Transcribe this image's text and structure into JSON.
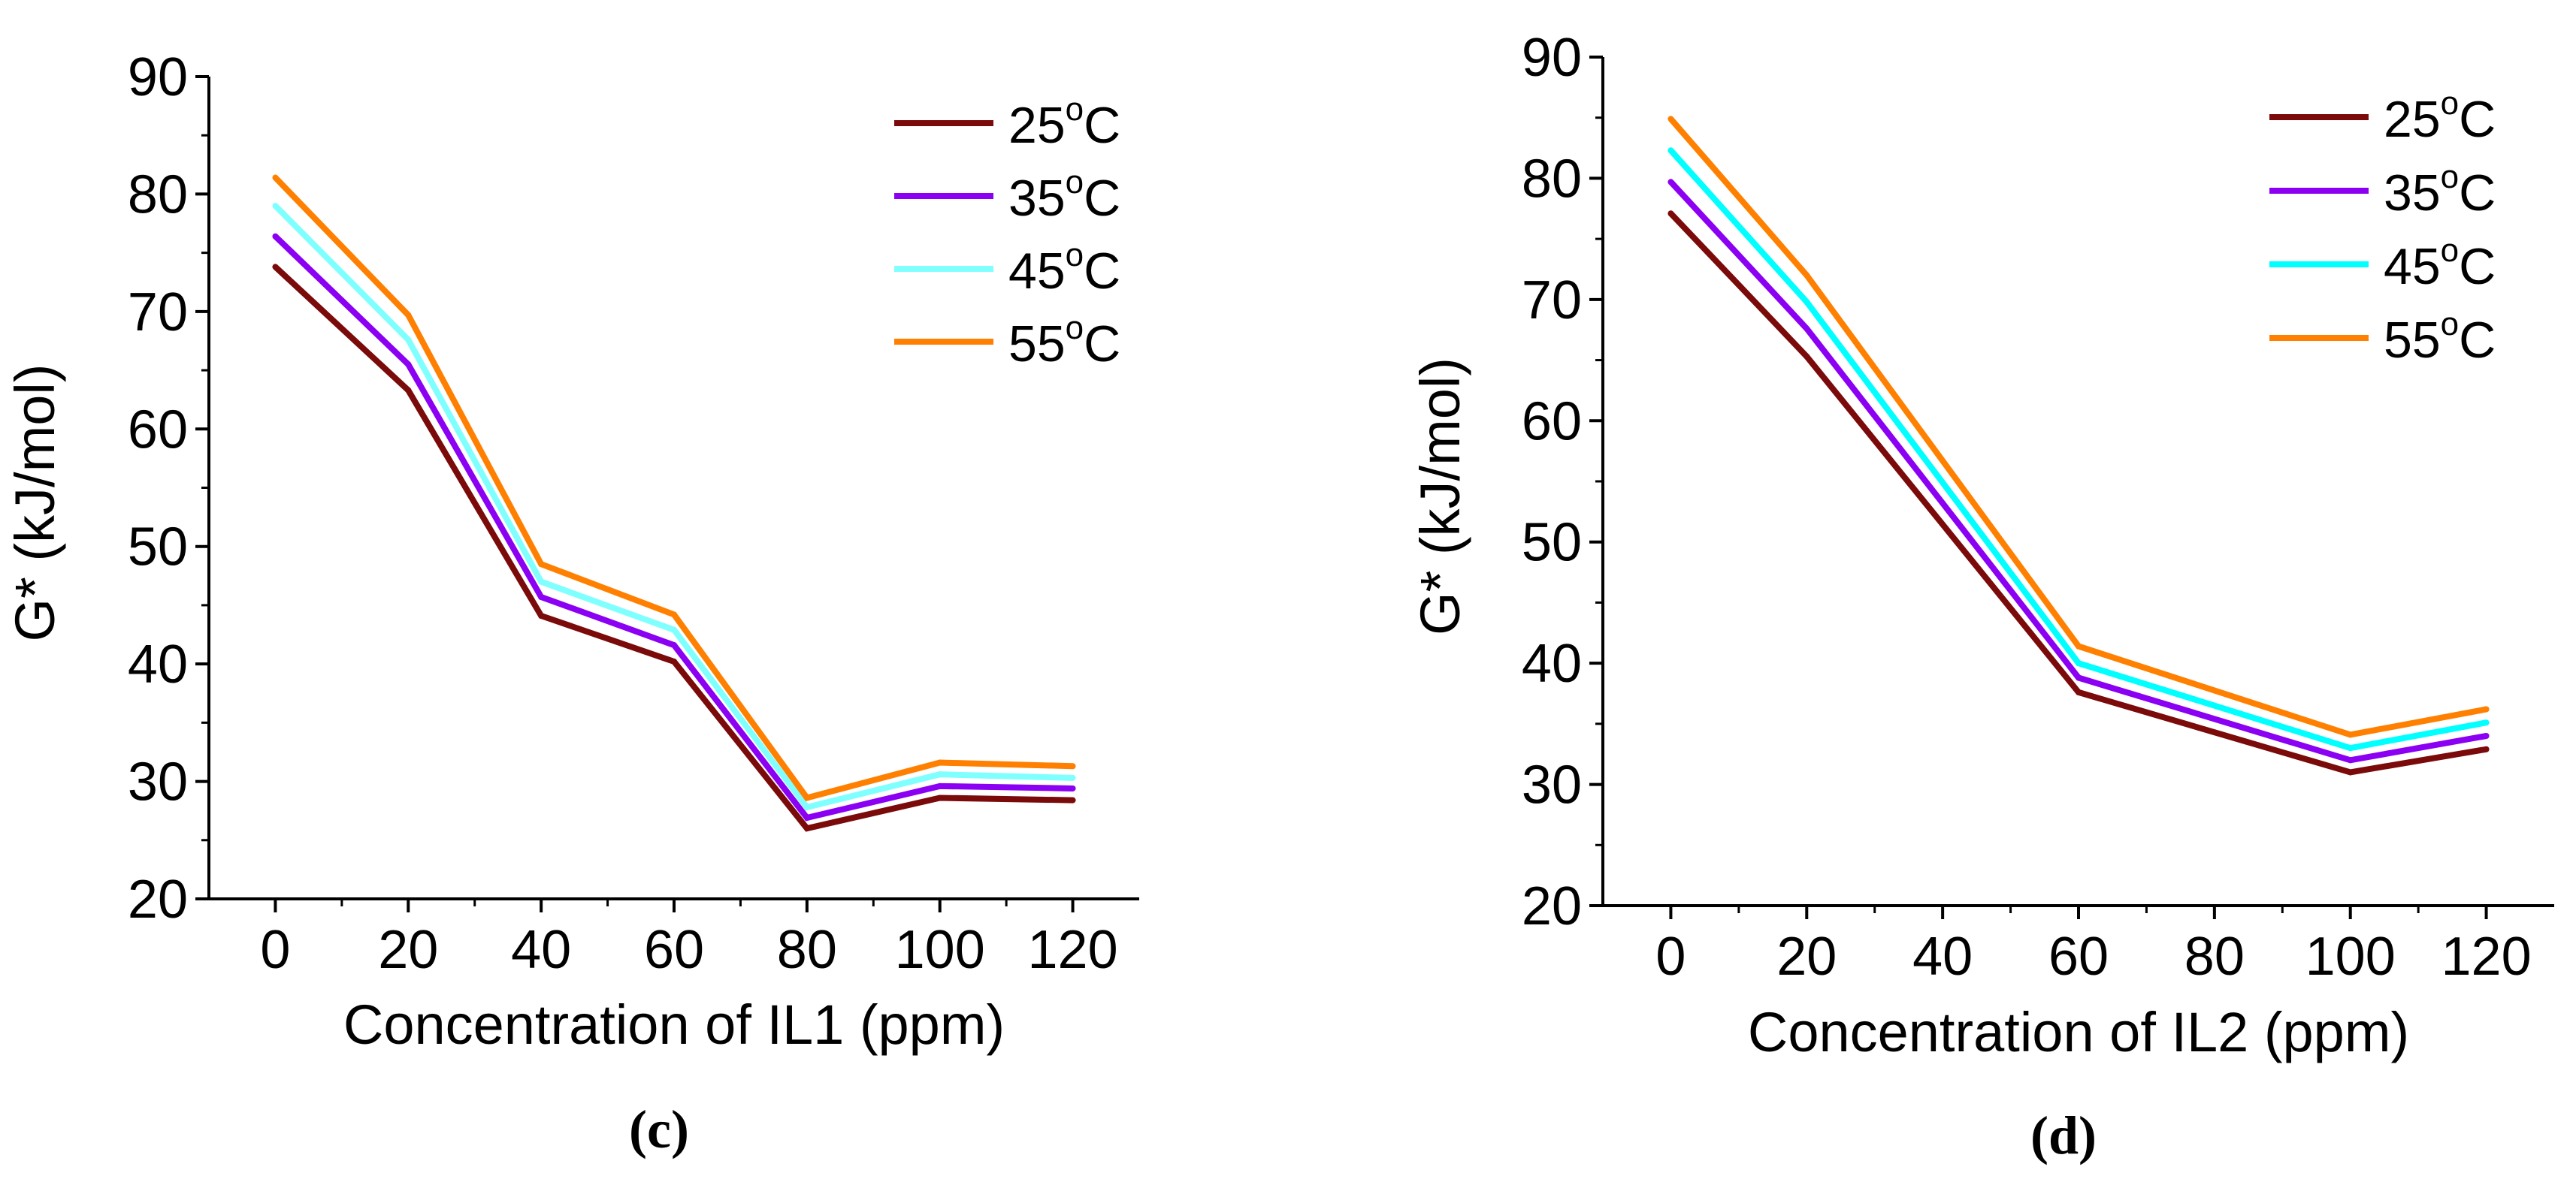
{
  "chart_data": [
    {
      "type": "line",
      "panel_label": "(c)",
      "xlabel": "Concentration of IL1 (ppm)",
      "ylabel": "G* (kJ/mol)",
      "x": [
        0,
        20,
        40,
        60,
        80,
        100,
        120
      ],
      "xlim": [
        -10,
        130
      ],
      "ylim": [
        20,
        90
      ],
      "xticks": [
        0,
        20,
        40,
        60,
        80,
        100,
        120
      ],
      "yticks": [
        20,
        30,
        40,
        50,
        60,
        70,
        80,
        90
      ],
      "legend_position": "top-right",
      "series": [
        {
          "name": "25°C",
          "label_base": "25",
          "label_sup": "o",
          "label_unit": "C",
          "color": "#7b0a0a",
          "values": [
            73.8,
            63.3,
            44.1,
            40.2,
            26.0,
            28.6,
            28.4
          ]
        },
        {
          "name": "35°C",
          "label_base": "35",
          "label_sup": "o",
          "label_unit": "C",
          "color": "#8b00f2",
          "values": [
            76.4,
            65.5,
            45.7,
            41.6,
            26.9,
            29.6,
            29.4
          ]
        },
        {
          "name": "45°C",
          "label_base": "45",
          "label_sup": "o",
          "label_unit": "C",
          "color": "#80ffff",
          "values": [
            79.0,
            67.6,
            47.0,
            42.9,
            27.8,
            30.6,
            30.3
          ]
        },
        {
          "name": "55°C",
          "label_base": "55",
          "label_sup": "o",
          "label_unit": "C",
          "color": "#ff8000",
          "values": [
            81.4,
            69.7,
            48.5,
            44.2,
            28.6,
            31.6,
            31.3
          ]
        }
      ]
    },
    {
      "type": "line",
      "panel_label": "(d)",
      "xlabel": "Concentration of IL2 (ppm)",
      "ylabel": "G* (kJ/mol)",
      "x": [
        0,
        20,
        60,
        100,
        120
      ],
      "xlim": [
        -10,
        130
      ],
      "ylim": [
        20,
        90
      ],
      "xticks": [
        0,
        20,
        40,
        60,
        80,
        100,
        120
      ],
      "yticks": [
        20,
        30,
        40,
        50,
        60,
        70,
        80,
        90
      ],
      "legend_position": "top-right",
      "series": [
        {
          "name": "25°C",
          "label_base": "25",
          "label_sup": "o",
          "label_unit": "C",
          "color": "#7b0a0a",
          "values": [
            77.1,
            65.3,
            37.6,
            31.0,
            32.9
          ]
        },
        {
          "name": "35°C",
          "label_base": "35",
          "label_sup": "o",
          "label_unit": "C",
          "color": "#8b00f2",
          "values": [
            79.7,
            67.6,
            38.8,
            32.0,
            34.0
          ]
        },
        {
          "name": "45°C",
          "label_base": "45",
          "label_sup": "o",
          "label_unit": "C",
          "color": "#00ffff",
          "values": [
            82.3,
            69.8,
            40.0,
            33.0,
            35.1
          ]
        },
        {
          "name": "55°C",
          "label_base": "55",
          "label_sup": "o",
          "label_unit": "C",
          "color": "#ff8000",
          "values": [
            84.9,
            72.0,
            41.4,
            34.1,
            36.2
          ]
        }
      ]
    }
  ]
}
